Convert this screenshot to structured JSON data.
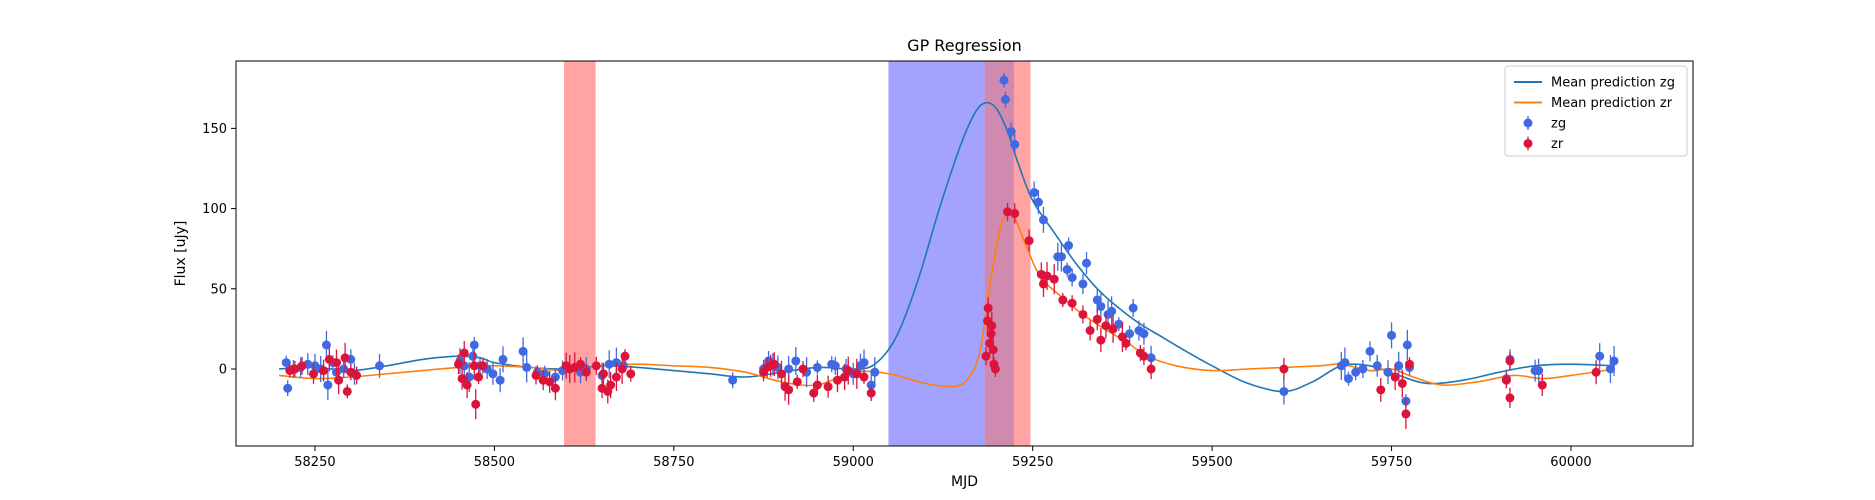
{
  "chart_data": {
    "type": "scatter",
    "title": "GP Regression",
    "xlabel": "MJD",
    "ylabel": "Flux [uJy]",
    "xlim": [
      58140,
      60170
    ],
    "ylim": [
      -48,
      192
    ],
    "xticks": [
      58250,
      58500,
      58750,
      59000,
      59250,
      59500,
      59750,
      60000
    ],
    "yticks": [
      0,
      50,
      100,
      150
    ],
    "grid": false,
    "legend_position": "top-right",
    "shaded_regions": [
      {
        "x0": 58597,
        "x1": 58641,
        "color": "#ff6666"
      },
      {
        "x0": 59049,
        "x1": 59183,
        "color": "#6666ff"
      },
      {
        "x0": 59183,
        "x1": 59224,
        "color": "#b03a7a"
      },
      {
        "x0": 59224,
        "x1": 59247,
        "color": "#ff6666"
      }
    ],
    "lines": [
      {
        "name": "Mean prediction zg",
        "color": "#1f77b4",
        "x": [
          58200,
          58250,
          58300,
          58350,
          58400,
          58450,
          58480,
          58500,
          58550,
          58600,
          58650,
          58700,
          58750,
          58800,
          58850,
          58900,
          58950,
          59000,
          59030,
          59060,
          59090,
          59120,
          59150,
          59170,
          59185,
          59200,
          59215,
          59230,
          59250,
          59280,
          59310,
          59340,
          59370,
          59400,
          59430,
          59460,
          59500,
          59550,
          59600,
          59640,
          59680,
          59720,
          59760,
          59800,
          59850,
          59900,
          59950,
          60000,
          60060
        ],
        "y": [
          0,
          1,
          -1,
          2,
          6,
          8,
          7,
          4,
          1,
          0,
          2,
          1,
          -1,
          -3,
          -5,
          -2,
          1,
          0,
          3,
          20,
          55,
          100,
          140,
          160,
          166,
          162,
          148,
          128,
          105,
          85,
          66,
          50,
          38,
          28,
          20,
          12,
          2,
          -9,
          -14,
          -8,
          2,
          2,
          -4,
          -9,
          -7,
          -2,
          2,
          3,
          2
        ]
      },
      {
        "name": "Mean prediction zr",
        "color": "#ff7f0e",
        "x": [
          58200,
          58250,
          58300,
          58350,
          58400,
          58450,
          58500,
          58550,
          58600,
          58650,
          58700,
          58750,
          58800,
          58850,
          58900,
          58950,
          59000,
          59050,
          59100,
          59140,
          59160,
          59175,
          59185,
          59195,
          59205,
          59215,
          59225,
          59240,
          59260,
          59290,
          59320,
          59350,
          59380,
          59410,
          59450,
          59500,
          59550,
          59600,
          59650,
          59680,
          59720,
          59750,
          59780,
          59820,
          59870,
          59920,
          59960,
          60000,
          60060
        ],
        "y": [
          -4,
          -6,
          -5,
          -3,
          -1,
          1,
          2,
          1,
          -1,
          2,
          3,
          2,
          1,
          -2,
          -8,
          -10,
          -2,
          -3,
          -9,
          -11,
          -6,
          8,
          35,
          65,
          88,
          97,
          94,
          78,
          58,
          45,
          34,
          25,
          17,
          8,
          2,
          -1,
          0,
          1,
          2,
          3,
          -1,
          0,
          -5,
          -10,
          -8,
          -4,
          -6,
          -4,
          0
        ]
      }
    ],
    "series": [
      {
        "name": "zg",
        "color": "#4169e1",
        "points": [
          [
            58210,
            4
          ],
          [
            58212,
            -12
          ],
          [
            58220,
            0
          ],
          [
            58230,
            1
          ],
          [
            58240,
            3
          ],
          [
            58250,
            2
          ],
          [
            58258,
            0
          ],
          [
            58266,
            15
          ],
          [
            58268,
            -10
          ],
          [
            58275,
            4
          ],
          [
            58280,
            -2
          ],
          [
            58290,
            0
          ],
          [
            58300,
            6
          ],
          [
            58305,
            -3
          ],
          [
            58340,
            2
          ],
          [
            58452,
            5
          ],
          [
            58458,
            2
          ],
          [
            58465,
            -5
          ],
          [
            58470,
            8
          ],
          [
            58472,
            15
          ],
          [
            58480,
            2
          ],
          [
            58490,
            0
          ],
          [
            58498,
            -3
          ],
          [
            58508,
            -7
          ],
          [
            58512,
            6
          ],
          [
            58540,
            11
          ],
          [
            58545,
            1
          ],
          [
            58560,
            -2
          ],
          [
            58570,
            -3
          ],
          [
            58585,
            -5
          ],
          [
            58595,
            -1
          ],
          [
            58620,
            -2
          ],
          [
            58628,
            0
          ],
          [
            58650,
            -4
          ],
          [
            58660,
            3
          ],
          [
            58670,
            4
          ],
          [
            58680,
            2
          ],
          [
            58832,
            -7
          ],
          [
            58875,
            0
          ],
          [
            58882,
            5
          ],
          [
            58888,
            3
          ],
          [
            58895,
            1
          ],
          [
            58910,
            0
          ],
          [
            58920,
            5
          ],
          [
            58935,
            -2
          ],
          [
            58950,
            1
          ],
          [
            58970,
            3
          ],
          [
            58975,
            2
          ],
          [
            58990,
            0
          ],
          [
            59000,
            -3
          ],
          [
            59010,
            2
          ],
          [
            59015,
            4
          ],
          [
            59025,
            -10
          ],
          [
            59030,
            -2
          ],
          [
            59210,
            180
          ],
          [
            59212,
            168
          ],
          [
            59220,
            148
          ],
          [
            59225,
            140
          ],
          [
            59252,
            110
          ],
          [
            59258,
            104
          ],
          [
            59265,
            93
          ],
          [
            59285,
            70
          ],
          [
            59290,
            70
          ],
          [
            59298,
            62
          ],
          [
            59300,
            77
          ],
          [
            59305,
            57
          ],
          [
            59320,
            53
          ],
          [
            59325,
            66
          ],
          [
            59340,
            43
          ],
          [
            59345,
            39
          ],
          [
            59355,
            34
          ],
          [
            59360,
            36
          ],
          [
            59370,
            28
          ],
          [
            59385,
            22
          ],
          [
            59390,
            38
          ],
          [
            59398,
            24
          ],
          [
            59405,
            22
          ],
          [
            59415,
            7
          ],
          [
            59600,
            -14
          ],
          [
            59680,
            2
          ],
          [
            59685,
            4
          ],
          [
            59690,
            -6
          ],
          [
            59700,
            -2
          ],
          [
            59710,
            0
          ],
          [
            59720,
            11
          ],
          [
            59730,
            2
          ],
          [
            59745,
            -2
          ],
          [
            59750,
            21
          ],
          [
            59760,
            2
          ],
          [
            59772,
            15
          ],
          [
            59770,
            -20
          ],
          [
            59775,
            1
          ],
          [
            59910,
            -6
          ],
          [
            59915,
            6
          ],
          [
            59950,
            -1
          ],
          [
            59955,
            -1
          ],
          [
            60040,
            8
          ],
          [
            60055,
            0
          ],
          [
            60060,
            5
          ]
        ]
      },
      {
        "name": "zr",
        "color": "#dc143c",
        "points": [
          [
            58215,
            -1
          ],
          [
            58222,
            0
          ],
          [
            58232,
            2
          ],
          [
            58248,
            -3
          ],
          [
            58262,
            -1
          ],
          [
            58270,
            6
          ],
          [
            58280,
            4
          ],
          [
            58283,
            -7
          ],
          [
            58292,
            7
          ],
          [
            58295,
            -14
          ],
          [
            58300,
            -2
          ],
          [
            58308,
            -4
          ],
          [
            58450,
            3
          ],
          [
            58455,
            -6
          ],
          [
            58458,
            10
          ],
          [
            58462,
            -10
          ],
          [
            58472,
            2
          ],
          [
            58474,
            -22
          ],
          [
            58478,
            -5
          ],
          [
            58484,
            2
          ],
          [
            58558,
            -4
          ],
          [
            58568,
            -7
          ],
          [
            58577,
            -8
          ],
          [
            58585,
            -12
          ],
          [
            58600,
            2
          ],
          [
            58605,
            0
          ],
          [
            58612,
            1
          ],
          [
            58620,
            3
          ],
          [
            58628,
            -2
          ],
          [
            58642,
            2
          ],
          [
            58650,
            -12
          ],
          [
            58652,
            -3
          ],
          [
            58658,
            -14
          ],
          [
            58662,
            -10
          ],
          [
            58670,
            -5
          ],
          [
            58678,
            0
          ],
          [
            58682,
            8
          ],
          [
            58690,
            -3
          ],
          [
            58875,
            -2
          ],
          [
            58880,
            1
          ],
          [
            58885,
            2
          ],
          [
            58890,
            3
          ],
          [
            58900,
            -3
          ],
          [
            58905,
            -11
          ],
          [
            58910,
            -13
          ],
          [
            58922,
            -8
          ],
          [
            58930,
            0
          ],
          [
            58945,
            -15
          ],
          [
            58950,
            -10
          ],
          [
            58965,
            -11
          ],
          [
            58978,
            -7
          ],
          [
            58988,
            -5
          ],
          [
            58993,
            -1
          ],
          [
            59005,
            -3
          ],
          [
            59015,
            -5
          ],
          [
            59025,
            -15
          ],
          [
            59185,
            8
          ],
          [
            59187,
            30
          ],
          [
            59188,
            38
          ],
          [
            59190,
            16
          ],
          [
            59192,
            22
          ],
          [
            59193,
            27
          ],
          [
            59195,
            12
          ],
          [
            59196,
            3
          ],
          [
            59198,
            0
          ],
          [
            59215,
            98
          ],
          [
            59225,
            97
          ],
          [
            59245,
            80
          ],
          [
            59262,
            59
          ],
          [
            59265,
            53
          ],
          [
            59270,
            58
          ],
          [
            59280,
            56
          ],
          [
            59292,
            43
          ],
          [
            59305,
            41
          ],
          [
            59320,
            34
          ],
          [
            59330,
            24
          ],
          [
            59340,
            31
          ],
          [
            59345,
            18
          ],
          [
            59352,
            27
          ],
          [
            59362,
            25
          ],
          [
            59375,
            20
          ],
          [
            59380,
            16
          ],
          [
            59400,
            10
          ],
          [
            59405,
            8
          ],
          [
            59415,
            0
          ],
          [
            59600,
            0
          ],
          [
            59735,
            -13
          ],
          [
            59755,
            -5
          ],
          [
            59765,
            -9
          ],
          [
            59770,
            -28
          ],
          [
            59775,
            3
          ],
          [
            59910,
            -7
          ],
          [
            59915,
            5
          ],
          [
            59915,
            -18
          ],
          [
            59960,
            -10
          ],
          [
            60035,
            -2
          ]
        ]
      }
    ]
  }
}
